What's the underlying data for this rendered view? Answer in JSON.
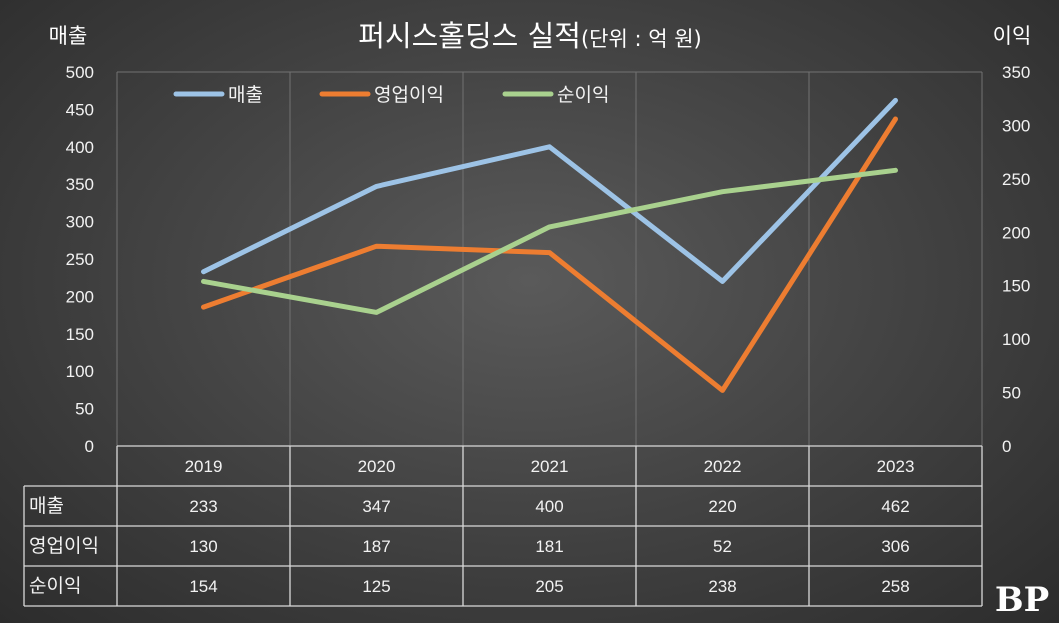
{
  "colors": {
    "sales": "#9dc3e6",
    "op": "#ed7d31",
    "net": "#a9d18e"
  },
  "logo": "BP",
  "chart_data": {
    "type": "line",
    "title_main": "퍼시스홀딩스 실적",
    "title_unit": "(단위 : 억 원)",
    "ylabel_left": "매출",
    "ylabel_right": "이익",
    "categories": [
      "2019",
      "2020",
      "2021",
      "2022",
      "2023"
    ],
    "ylim_left": [
      0,
      500
    ],
    "ylim_right": [
      0,
      350
    ],
    "yticks_left": [
      "500",
      "450",
      "400",
      "350",
      "300",
      "250",
      "200",
      "150",
      "100",
      "50",
      "0"
    ],
    "yticks_right": [
      "350",
      "300",
      "250",
      "200",
      "150",
      "100",
      "50",
      "0"
    ],
    "series": [
      {
        "name": "매출",
        "axis": "left",
        "color_key": "sales",
        "values": [
          233,
          347,
          400,
          220,
          462
        ]
      },
      {
        "name": "영업이익",
        "axis": "right",
        "color_key": "op",
        "values": [
          130,
          187,
          181,
          52,
          306
        ]
      },
      {
        "name": "순이익",
        "axis": "right",
        "color_key": "net",
        "values": [
          154,
          125,
          205,
          238,
          258
        ]
      }
    ],
    "table_rows": [
      {
        "label": "매출",
        "values": [
          "233",
          "347",
          "400",
          "220",
          "462"
        ]
      },
      {
        "label": "영업이익",
        "values": [
          "130",
          "187",
          "181",
          "52",
          "306"
        ]
      },
      {
        "label": "순이익",
        "values": [
          "154",
          "125",
          "205",
          "238",
          "258"
        ]
      }
    ]
  }
}
